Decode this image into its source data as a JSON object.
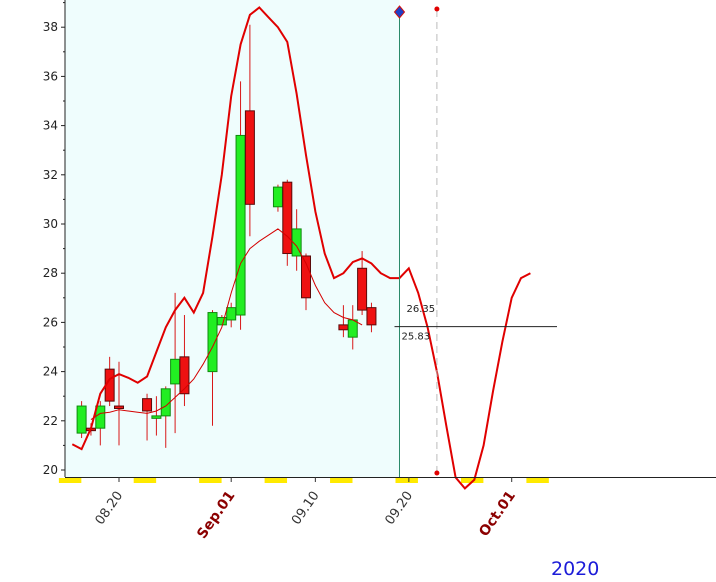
{
  "chart_data": {
    "type": "candlestick",
    "year_label": "2020",
    "y_ticks": [
      "20",
      "22",
      "24",
      "26",
      "28",
      "30",
      "32",
      "34",
      "36",
      "38"
    ],
    "ylim": [
      19.6,
      38.8
    ],
    "x_ticks": [
      {
        "label": "08.20",
        "day": 0,
        "month_label": false
      },
      {
        "label": "Sep.01",
        "day": 12,
        "month_label": true
      },
      {
        "label": "09.10",
        "day": 21,
        "month_label": false
      },
      {
        "label": "09.20",
        "day": 31,
        "month_label": false
      },
      {
        "label": "Oct.01",
        "day": 42,
        "month_label": true
      }
    ],
    "price_labels": [
      "26.35",
      "25.83"
    ],
    "cursor_day": 30,
    "forecast_marker_day": 34,
    "candles": [
      {
        "date": "08.16",
        "day": -4,
        "open": 21.5,
        "close": 22.6,
        "high": 22.8,
        "low": 21.3
      },
      {
        "date": "08.17",
        "day": -3,
        "open": 21.7,
        "close": 21.6,
        "high": 21.9,
        "low": 21.4
      },
      {
        "date": "08.18",
        "day": -2,
        "open": 21.7,
        "close": 22.6,
        "high": 22.8,
        "low": 21.0
      },
      {
        "date": "08.19",
        "day": -1,
        "open": 24.1,
        "close": 22.8,
        "high": 24.6,
        "low": 22.6
      },
      {
        "date": "08.20",
        "day": 0,
        "open": 22.6,
        "close": 22.5,
        "high": 24.4,
        "low": 21.0
      },
      {
        "date": "08.23",
        "day": 3,
        "open": 22.9,
        "close": 22.4,
        "high": 23.1,
        "low": 21.2
      },
      {
        "date": "08.24",
        "day": 4,
        "open": 22.1,
        "close": 22.2,
        "high": 23.0,
        "low": 21.4
      },
      {
        "date": "08.25",
        "day": 5,
        "open": 22.2,
        "close": 23.3,
        "high": 23.4,
        "low": 20.9
      },
      {
        "date": "08.26",
        "day": 6,
        "open": 23.5,
        "close": 24.5,
        "high": 27.2,
        "low": 21.5
      },
      {
        "date": "08.27",
        "day": 7,
        "open": 24.6,
        "close": 23.1,
        "high": 26.3,
        "low": 22.6
      },
      {
        "date": "08.30",
        "day": 10,
        "open": 24.0,
        "close": 26.4,
        "high": 26.5,
        "low": 21.8
      },
      {
        "date": "08.31",
        "day": 11,
        "open": 25.9,
        "close": 26.2,
        "high": 26.3,
        "low": 25.9
      },
      {
        "date": "09.01",
        "day": 12,
        "open": 26.1,
        "close": 26.6,
        "high": 26.8,
        "low": 25.8
      },
      {
        "date": "09.02",
        "day": 13,
        "open": 26.3,
        "close": 33.6,
        "high": 35.8,
        "low": 25.7
      },
      {
        "date": "09.03",
        "day": 14,
        "open": 34.6,
        "close": 30.8,
        "high": 38.1,
        "low": 29.5
      },
      {
        "date": "09.06",
        "day": 17,
        "open": 30.7,
        "close": 31.5,
        "high": 31.6,
        "low": 30.5
      },
      {
        "date": "09.07",
        "day": 18,
        "open": 31.7,
        "close": 28.8,
        "high": 31.8,
        "low": 28.3
      },
      {
        "date": "09.08",
        "day": 19,
        "open": 28.7,
        "close": 29.8,
        "high": 30.6,
        "low": 28.1
      },
      {
        "date": "09.09",
        "day": 20,
        "open": 28.7,
        "close": 27.0,
        "high": 28.8,
        "low": 26.5
      },
      {
        "date": "09.13",
        "day": 24,
        "open": 25.9,
        "close": 25.7,
        "high": 26.7,
        "low": 25.4
      },
      {
        "date": "09.14",
        "day": 25,
        "open": 25.4,
        "close": 26.1,
        "high": 26.7,
        "low": 24.9
      },
      {
        "date": "09.15",
        "day": 26,
        "open": 28.2,
        "close": 26.5,
        "high": 28.9,
        "low": 26.3
      },
      {
        "date": "09.16",
        "day": 27,
        "open": 26.6,
        "close": 25.9,
        "high": 26.8,
        "low": 25.6
      }
    ],
    "upper_band": [
      [
        -5,
        21.05
      ],
      [
        -4,
        20.85
      ],
      [
        -3,
        21.7
      ],
      [
        -2,
        23.1
      ],
      [
        -1,
        23.7
      ],
      [
        0,
        23.9
      ],
      [
        1,
        23.75
      ],
      [
        2,
        23.55
      ],
      [
        3,
        23.8
      ],
      [
        4,
        24.8
      ],
      [
        5,
        25.8
      ],
      [
        6,
        26.5
      ],
      [
        7,
        27.0
      ],
      [
        8,
        26.4
      ],
      [
        9,
        27.2
      ],
      [
        10,
        29.5
      ],
      [
        11,
        32.0
      ],
      [
        12,
        35.2
      ],
      [
        13,
        37.3
      ],
      [
        14,
        38.5
      ],
      [
        15,
        38.8
      ],
      [
        16,
        38.4
      ],
      [
        17,
        38.0
      ],
      [
        18,
        37.4
      ],
      [
        19,
        35.3
      ],
      [
        20,
        32.8
      ],
      [
        21,
        30.5
      ],
      [
        22,
        28.8
      ],
      [
        23,
        27.8
      ],
      [
        24,
        28.0
      ],
      [
        25,
        28.45
      ],
      [
        26,
        28.6
      ],
      [
        27,
        28.4
      ],
      [
        28,
        28.0
      ],
      [
        29,
        27.8
      ],
      [
        30,
        27.8
      ],
      [
        31,
        28.2
      ],
      [
        32,
        27.2
      ],
      [
        33,
        25.8
      ],
      [
        34,
        24.0
      ],
      [
        35,
        21.8
      ],
      [
        36,
        19.7
      ],
      [
        37,
        19.25
      ],
      [
        38,
        19.6
      ],
      [
        39,
        21.0
      ],
      [
        40,
        23.2
      ],
      [
        41,
        25.2
      ],
      [
        42,
        27.0
      ],
      [
        43,
        27.8
      ],
      [
        44,
        28.0
      ]
    ],
    "moving_average": [
      [
        -3,
        22.05
      ],
      [
        -2,
        22.3
      ],
      [
        -1,
        22.35
      ],
      [
        0,
        22.45
      ],
      [
        1,
        22.4
      ],
      [
        2,
        22.35
      ],
      [
        3,
        22.3
      ],
      [
        4,
        22.4
      ],
      [
        5,
        22.6
      ],
      [
        6,
        22.95
      ],
      [
        7,
        23.3
      ],
      [
        8,
        23.7
      ],
      [
        9,
        24.3
      ],
      [
        10,
        25.0
      ],
      [
        11,
        25.8
      ],
      [
        12,
        27.2
      ],
      [
        13,
        28.4
      ],
      [
        14,
        29.0
      ],
      [
        15,
        29.3
      ],
      [
        16,
        29.55
      ],
      [
        17,
        29.8
      ],
      [
        18,
        29.5
      ],
      [
        19,
        29.1
      ],
      [
        20,
        28.4
      ],
      [
        21,
        27.5
      ],
      [
        22,
        26.8
      ],
      [
        23,
        26.4
      ],
      [
        24,
        26.2
      ],
      [
        25,
        26.1
      ],
      [
        26,
        25.9
      ]
    ],
    "grid": false,
    "legend": "none"
  }
}
